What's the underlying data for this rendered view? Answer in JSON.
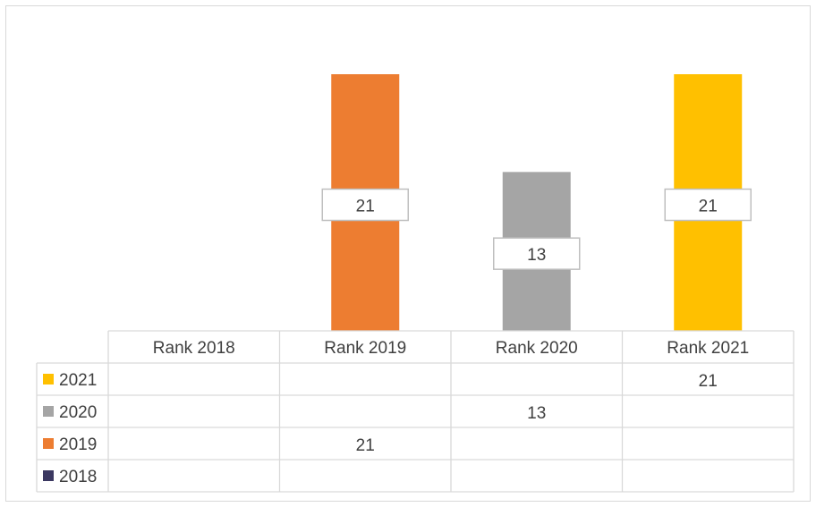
{
  "chart_data": {
    "type": "bar",
    "categories": [
      "Rank 2018",
      "Rank 2019",
      "Rank 2020",
      "Rank 2021"
    ],
    "series": [
      {
        "name": "2021",
        "color": "#FFC000",
        "values": [
          null,
          null,
          null,
          21
        ]
      },
      {
        "name": "2020",
        "color": "#A5A5A5",
        "values": [
          null,
          null,
          13,
          null
        ]
      },
      {
        "name": "2019",
        "color": "#ED7D31",
        "values": [
          null,
          21,
          null,
          null
        ]
      },
      {
        "name": "2018",
        "color": "#3B3861",
        "values": [
          null,
          null,
          null,
          null
        ]
      }
    ],
    "ylim": [
      0,
      21
    ],
    "grid": false,
    "legend": "data-table",
    "data_labels": true,
    "title": "",
    "xlabel": "",
    "ylabel": ""
  }
}
